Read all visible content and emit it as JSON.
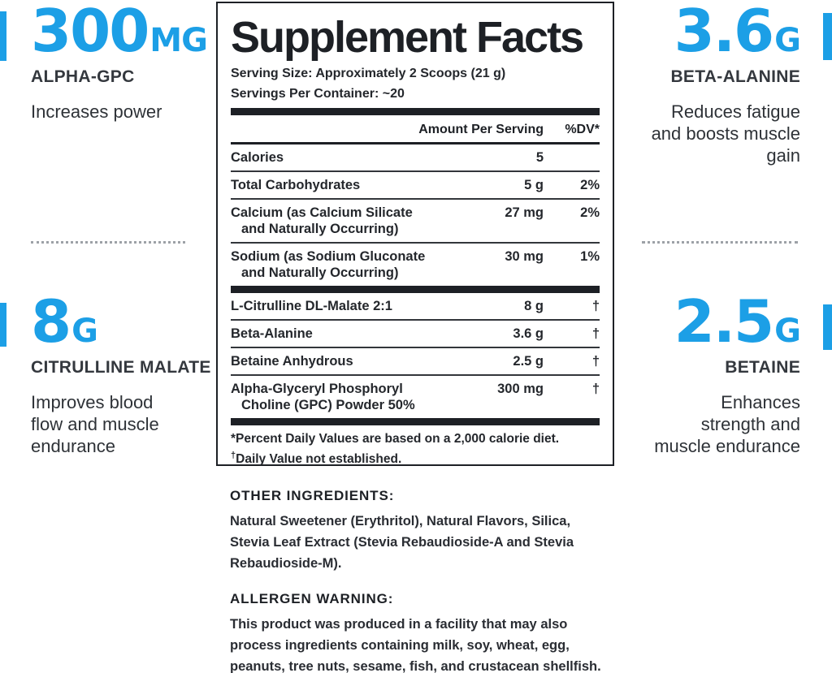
{
  "colors": {
    "accent_blue": "#1c9fe6",
    "dark_text": "#24272c",
    "dot_gray": "#9da1a7"
  },
  "callouts": {
    "top_left": {
      "value": "300",
      "unit": "MG",
      "name": "ALPHA-GPC",
      "desc_lines": [
        "Increases power"
      ]
    },
    "top_right": {
      "value": "3.6",
      "unit": "G",
      "name": "BETA-ALANINE",
      "desc_lines": [
        "Reduces fatigue",
        "and boosts muscle",
        "gain"
      ]
    },
    "mid_left": {
      "value": "8",
      "unit": "G",
      "name": "CITRULLINE MALATE",
      "desc_lines": [
        "Improves blood",
        "flow and muscle",
        "endurance"
      ]
    },
    "mid_right": {
      "value": "2.5",
      "unit": "G",
      "name": "BETAINE",
      "desc_lines": [
        "Enhances",
        "strength and",
        "muscle endurance"
      ]
    }
  },
  "panel": {
    "title": "Supplement Facts",
    "serving_size": "Serving Size: Approximately 2 Scoops (21 g)",
    "servings_per_container": "Servings Per Container: ~20",
    "col_amount": "Amount Per Serving",
    "col_dv": "%DV*",
    "rows": [
      {
        "name": "Calories",
        "name2": "",
        "amount": "5",
        "dv": ""
      },
      {
        "name": "Total Carbohydrates",
        "name2": "",
        "amount": "5 g",
        "dv": "2%"
      },
      {
        "name": "Calcium (as Calcium Silicate",
        "name2": "and Naturally Occurring)",
        "amount": "27 mg",
        "dv": "2%"
      },
      {
        "name": "Sodium (as Sodium Gluconate",
        "name2": "and Naturally Occurring)",
        "amount": "30 mg",
        "dv": "1%"
      },
      {
        "name": "L-Citrulline DL-Malate 2:1",
        "name2": "",
        "amount": "8 g",
        "dv": "†"
      },
      {
        "name": "Beta-Alanine",
        "name2": "",
        "amount": "3.6 g",
        "dv": "†"
      },
      {
        "name": "Betaine Anhydrous",
        "name2": "",
        "amount": "2.5 g",
        "dv": "†"
      },
      {
        "name": "Alpha-Glyceryl Phosphoryl",
        "name2": "Choline (GPC) Powder 50%",
        "amount": "300 mg",
        "dv": "†"
      }
    ],
    "footnote1": "*Percent Daily Values are based on a 2,000 calorie diet.",
    "footnote2_symbol": "†",
    "footnote2": "Daily Value not established."
  },
  "other_ingredients": {
    "heading": "OTHER INGREDIENTS:",
    "lines": [
      "Natural Sweetener (Erythritol), Natural Flavors, Silica,",
      "Stevia Leaf Extract (Stevia Rebaudioside-A and Stevia",
      "Rebaudioside-M)."
    ]
  },
  "allergen_warning": {
    "heading": "ALLERGEN WARNING:",
    "lines": [
      "This product was produced in a facility that may also",
      "process ingredients containing milk, soy, wheat, egg,",
      "peanuts, tree nuts, sesame, fish, and crustacean shellfish."
    ]
  }
}
